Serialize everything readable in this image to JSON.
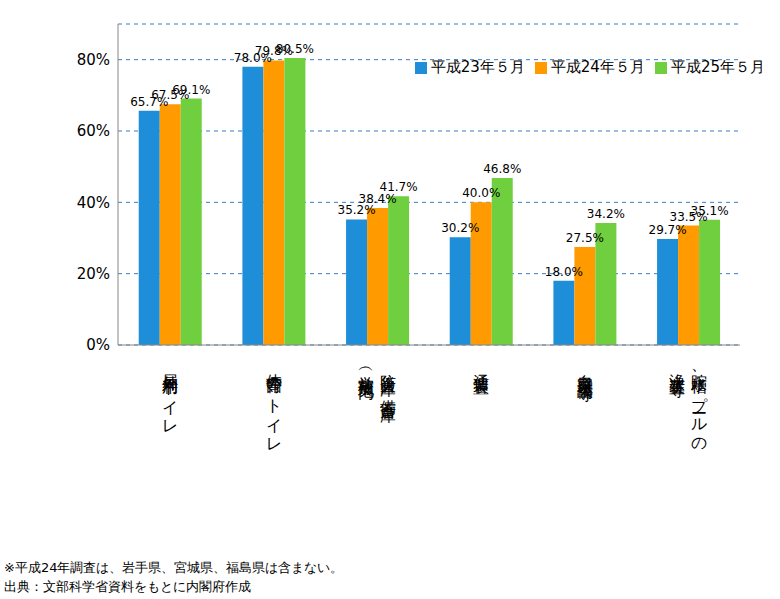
{
  "chart_data": {
    "type": "bar",
    "categories": [
      "屋外利用トイレ",
      "体育館のトイレ",
      "防災倉庫／備蓄倉庫\n（学校敷地内）",
      "通信装置",
      "自家発電設備等",
      "貯水槽、プールの\n浄水装置等"
    ],
    "series": [
      {
        "name": "平成23年５月",
        "color": "#1e8ed8",
        "values": [
          65.7,
          78.0,
          35.2,
          30.2,
          18.0,
          29.7
        ],
        "value_labels": [
          "65.7%",
          "78.0%",
          "35.2%",
          "30.2%",
          "18.0%",
          "29.7%"
        ]
      },
      {
        "name": "平成24年５月",
        "color": "#ff9a00",
        "values": [
          67.5,
          79.8,
          38.4,
          40.0,
          27.5,
          33.5
        ],
        "value_labels": [
          "67.5%",
          "79.8%",
          "38.4%",
          "40.0%",
          "27.5%",
          "33.5%"
        ]
      },
      {
        "name": "平成25年５月",
        "color": "#6fcf3f",
        "values": [
          69.1,
          80.5,
          41.7,
          46.8,
          34.2,
          35.1
        ],
        "value_labels": [
          "69.1%",
          "80.5%",
          "41.7%",
          "46.8%",
          "34.2%",
          "35.1%"
        ]
      }
    ],
    "ylim": [
      0,
      90
    ],
    "yticks": [
      {
        "value": 0,
        "label": "0%"
      },
      {
        "value": 20,
        "label": "20%"
      },
      {
        "value": 40,
        "label": "40%"
      },
      {
        "value": 60,
        "label": "60%"
      },
      {
        "value": 80,
        "label": "80%"
      }
    ],
    "grid": true,
    "legend": "top-right",
    "data_labels": true,
    "annotations": [
      "※平成24年調査は、岩手県、宮城県、福島県は含まない。",
      "出典：文部科学省資料をもとに内閣府作成"
    ]
  }
}
